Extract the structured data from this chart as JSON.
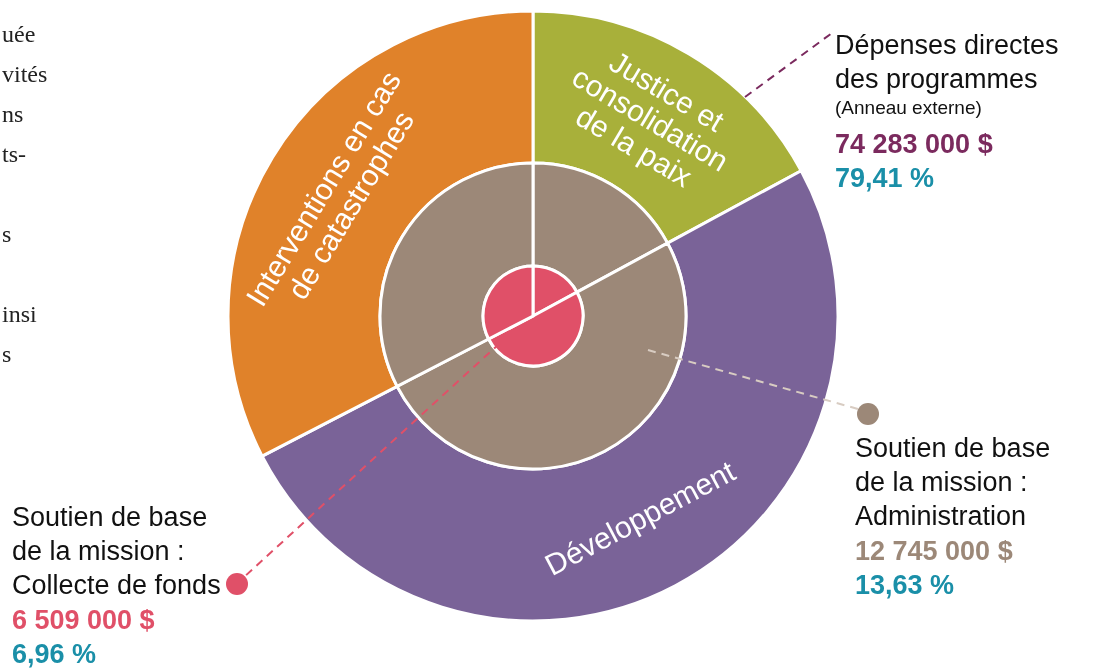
{
  "chart_data": {
    "type": "donut",
    "categories": [
      "Justice et\nconsolidation\nde la paix",
      "Développement",
      "Interventions en cas\nde catastrophes"
    ],
    "series": [
      {
        "name": "Dépenses directes\ndes programmes",
        "colors": [
          "#a8b03a",
          "#7a6398",
          "#e0822a"
        ],
        "values": [
          17.1,
          50.3,
          32.6
        ]
      },
      {
        "name": "Soutien de base\nde la mission :\nAdministration",
        "color": "#9c8878",
        "values": [
          17.1,
          50.3,
          32.6
        ]
      },
      {
        "name": "Soutien de base\nde la mission :\nCollecte de fonds",
        "color": "#e05068",
        "values": [
          17.1,
          50.3,
          32.6
        ]
      }
    ],
    "annotations": [
      "(Anneau externe)",
      "74 283 000 $",
      "79,41 %",
      "12 745 000 $",
      "13,63 %",
      "6 509 000 $",
      "6,96 %",
      "uée",
      "vités",
      "ns",
      "ts-",
      "s",
      "insi",
      "s"
    ]
  }
}
